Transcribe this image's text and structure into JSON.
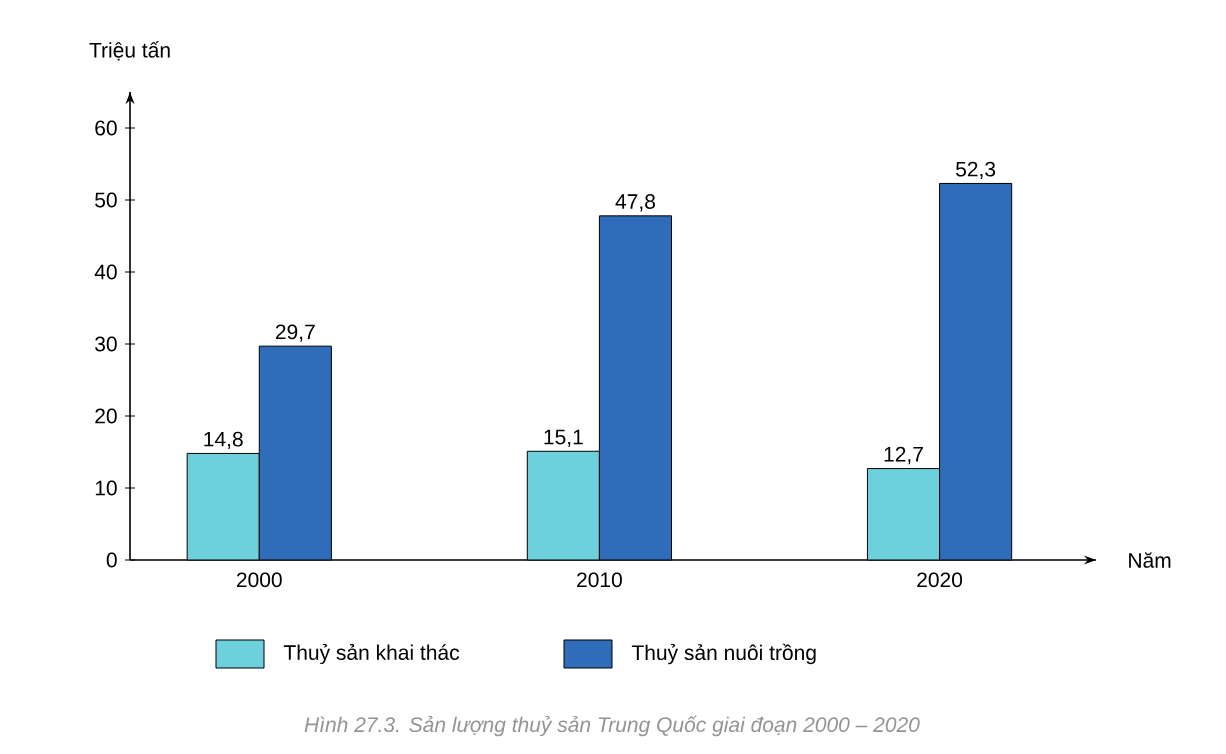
{
  "chart_data": {
    "type": "bar",
    "xlabel": "Năm",
    "ylabel": "Triệu tấn",
    "categories": [
      "2000",
      "2010",
      "2020"
    ],
    "series": [
      {
        "name": "Thuỷ sản khai thác",
        "color": "#6dd0dc",
        "values": [
          14.8,
          15.1,
          12.7
        ],
        "value_labels": [
          "14,8",
          "15,1",
          "12,7"
        ]
      },
      {
        "name": "Thuỷ sản nuôi trồng",
        "color": "#2f6cb9",
        "values": [
          29.7,
          47.8,
          52.3
        ],
        "value_labels": [
          "29,7",
          "47,8",
          "52,3"
        ]
      }
    ],
    "ylim": [
      0,
      65
    ],
    "yticks": [
      0,
      10,
      20,
      30,
      40,
      50,
      60
    ],
    "legend": "bottom",
    "grid": false,
    "annotations": [
      "Hình 27.3. Sản lượng thuỷ sản Trung Quốc giai đoạn 2000 – 2020"
    ]
  }
}
